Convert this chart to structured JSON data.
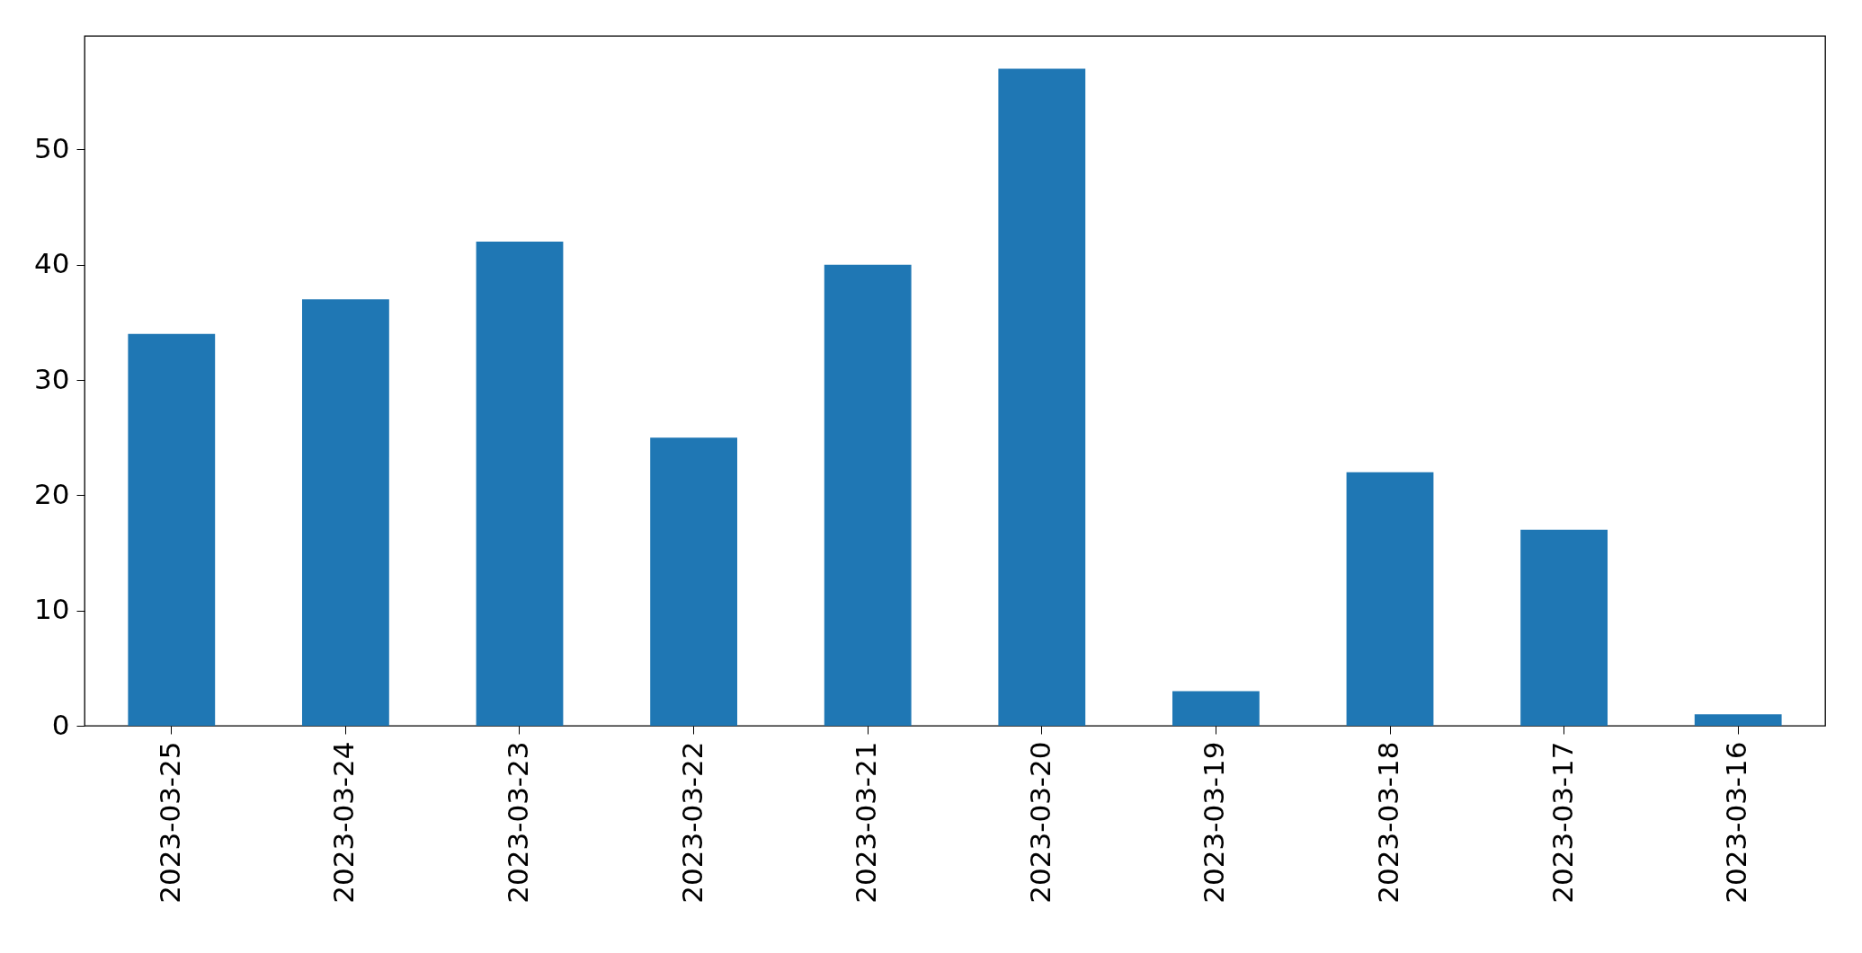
{
  "chart_data": {
    "type": "bar",
    "categories": [
      "2023-03-25",
      "2023-03-24",
      "2023-03-23",
      "2023-03-22",
      "2023-03-21",
      "2023-03-20",
      "2023-03-19",
      "2023-03-18",
      "2023-03-17",
      "2023-03-16"
    ],
    "values": [
      34,
      37,
      42,
      25,
      40,
      57,
      3,
      22,
      17,
      1
    ],
    "color": "#1f77b4",
    "ylim": [
      0,
      59.85
    ],
    "yticks": [
      0,
      10,
      20,
      30,
      40,
      50
    ],
    "grid": false
  }
}
